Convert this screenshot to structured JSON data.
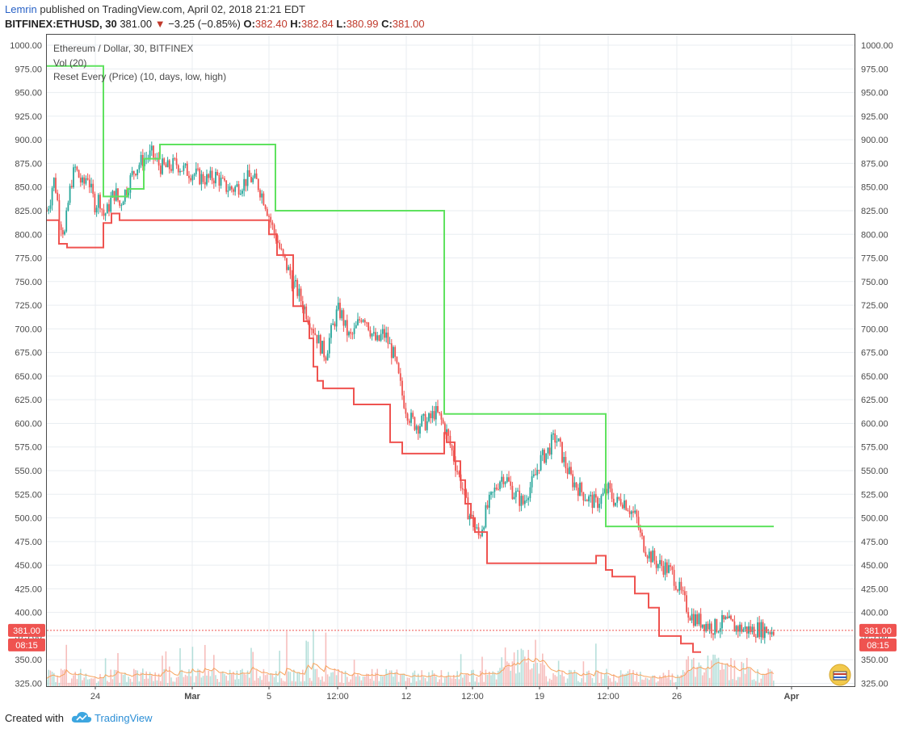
{
  "header": {
    "author": "Lemrin",
    "published_text": " published on TradingView.com, April 02, 2018 21:21 EDT",
    "symbol": "BITFINEX:ETHUSD, 30",
    "price": "381.00",
    "change": "−3.25 (−0.85%)",
    "o_label": "O:",
    "o_value": "382.40",
    "h_label": "H:",
    "h_value": "382.84",
    "l_label": "L:",
    "l_value": "380.99",
    "c_label": "C:",
    "c_value": "381.00"
  },
  "legend": {
    "title": "Ethereum / Dollar, 30, BITFINEX",
    "vol": "Vol (20)",
    "indicator": "Reset Every (Price) (10, days, low, high)"
  },
  "price_axis": {
    "ticks": [
      "1000.00",
      "975.00",
      "950.00",
      "925.00",
      "900.00",
      "875.00",
      "850.00",
      "825.00",
      "800.00",
      "775.00",
      "750.00",
      "725.00",
      "700.00",
      "675.00",
      "650.00",
      "625.00",
      "600.00",
      "575.00",
      "550.00",
      "525.00",
      "500.00",
      "475.00",
      "450.00",
      "425.00",
      "400.00",
      "375.00",
      "350.00",
      "325.00"
    ],
    "current_price_label": "381.00",
    "countdown_label": "08:15"
  },
  "time_axis": {
    "labels": [
      "24",
      "Mar",
      "5",
      "12:00",
      "12",
      "12:00",
      "19",
      "12:00",
      "26",
      "Apr"
    ]
  },
  "footer": {
    "created_with": "Created with",
    "brand": "TradingView"
  },
  "colors": {
    "upper_line": "#5fe25f",
    "lower_line": "#ef5350",
    "candle_up": "#26a69a",
    "candle_down": "#ef5350",
    "grid": "#e9edf1",
    "volume_ma": "#f7a35c"
  },
  "chart_data": {
    "type": "line",
    "title": "Ethereum / Dollar, 30, BITFINEX",
    "ylim": [
      322,
      1012
    ],
    "x_range": [
      0,
      1000
    ],
    "current_price": 381.0,
    "series": [
      {
        "name": "high",
        "x": [
          0,
          70,
          70,
          100,
          100,
          120,
          120,
          140,
          140,
          283,
          283,
          492,
          492,
          692,
          692,
          900
        ],
        "values": [
          978,
          978,
          840,
          840,
          848,
          848,
          880,
          880,
          895,
          895,
          825,
          825,
          610,
          610,
          491,
          491
        ]
      },
      {
        "name": "low",
        "x": [
          0,
          15,
          15,
          25,
          25,
          70,
          70,
          80,
          80,
          90,
          90,
          275,
          275,
          285,
          285,
          305,
          305,
          318,
          318,
          325,
          325,
          330,
          330,
          335,
          335,
          342,
          342,
          356,
          356,
          380,
          380,
          425,
          425,
          440,
          440,
          492,
          492,
          495,
          495,
          505,
          505,
          512,
          512,
          518,
          518,
          525,
          525,
          530,
          530,
          545,
          545,
          550,
          550,
          575,
          575,
          680,
          680,
          692,
          692,
          700,
          700,
          710,
          710,
          728,
          728,
          745,
          745,
          758,
          758,
          785,
          785,
          789,
          789,
          800,
          800,
          810
        ],
        "values": [
          815,
          815,
          790,
          790,
          786,
          786,
          812,
          812,
          822,
          822,
          815,
          815,
          800,
          800,
          778,
          778,
          724,
          724,
          708,
          708,
          690,
          690,
          660,
          660,
          645,
          645,
          637,
          637,
          637,
          637,
          620,
          620,
          580,
          580,
          568,
          568,
          590,
          590,
          580,
          580,
          560,
          560,
          540,
          540,
          515,
          515,
          500,
          500,
          485,
          485,
          452,
          452,
          452,
          452,
          452,
          452,
          460,
          460,
          445,
          445,
          438,
          438,
          438,
          438,
          420,
          420,
          405,
          405,
          375,
          375,
          367,
          367,
          367,
          367,
          358,
          358
        ]
      },
      {
        "name": "close",
        "x": [
          0,
          5,
          8,
          12,
          15,
          18,
          22,
          26,
          30,
          35,
          40,
          45,
          50,
          55,
          60,
          65,
          70,
          75,
          80,
          85,
          90,
          95,
          100,
          105,
          110,
          115,
          120,
          125,
          130,
          135,
          140,
          150,
          160,
          170,
          180,
          190,
          200,
          210,
          220,
          230,
          240,
          250,
          260,
          265,
          270,
          275,
          280,
          285,
          290,
          295,
          300,
          305,
          310,
          315,
          320,
          325,
          330,
          335,
          340,
          345,
          350,
          355,
          360,
          365,
          370,
          375,
          380,
          385,
          390,
          395,
          400,
          405,
          410,
          415,
          420,
          425,
          430,
          435,
          440,
          445,
          450,
          455,
          460,
          465,
          470,
          475,
          480,
          485,
          490,
          495,
          500,
          505,
          510,
          515,
          520,
          525,
          530,
          535,
          540,
          545,
          550,
          555,
          560,
          565,
          570,
          575,
          580,
          585,
          590,
          595,
          600,
          605,
          610,
          615,
          620,
          625,
          630,
          635,
          640,
          645,
          650,
          655,
          660,
          665,
          670,
          675,
          680,
          685,
          690,
          695,
          700,
          705,
          710,
          715,
          720,
          725,
          730,
          735,
          740,
          745,
          750,
          755,
          760,
          765,
          770,
          775,
          780,
          785,
          790,
          795,
          800,
          805,
          810,
          815,
          820,
          825,
          830,
          835,
          840,
          845,
          850,
          855,
          860,
          865,
          870,
          875,
          880,
          885,
          890,
          895,
          900
        ],
        "values": [
          825,
          840,
          860,
          845,
          820,
          810,
          800,
          830,
          855,
          870,
          860,
          850,
          865,
          845,
          830,
          840,
          820,
          825,
          838,
          845,
          830,
          842,
          850,
          862,
          870,
          875,
          880,
          882,
          885,
          878,
          872,
          870,
          875,
          868,
          865,
          860,
          858,
          862,
          850,
          848,
          852,
          860,
          855,
          845,
          835,
          820,
          805,
          795,
          780,
          770,
          760,
          748,
          740,
          730,
          720,
          710,
          700,
          690,
          680,
          672,
          690,
          705,
          720,
          715,
          700,
          690,
          695,
          705,
          715,
          712,
          700,
          690,
          685,
          695,
          692,
          680,
          670,
          650,
          630,
          615,
          605,
          600,
          598,
          602,
          600,
          605,
          612,
          608,
          600,
          590,
          575,
          560,
          545,
          530,
          510,
          500,
          490,
          480,
          495,
          510,
          520,
          530,
          540,
          545,
          540,
          530,
          525,
          520,
          515,
          528,
          535,
          545,
          560,
          565,
          570,
          580,
          585,
          575,
          560,
          550,
          540,
          535,
          530,
          525,
          520,
          518,
          515,
          520,
          525,
          530,
          522,
          515,
          520,
          518,
          512,
          505,
          500,
          480,
          470,
          462,
          458,
          452,
          450,
          448,
          445,
          440,
          430,
          420,
          410,
          400,
          395,
          392,
          390,
          388,
          386,
          384,
          385,
          388,
          390,
          388,
          385,
          384,
          383,
          382,
          382,
          381,
          383,
          382,
          382,
          381,
          381
        ]
      }
    ]
  }
}
